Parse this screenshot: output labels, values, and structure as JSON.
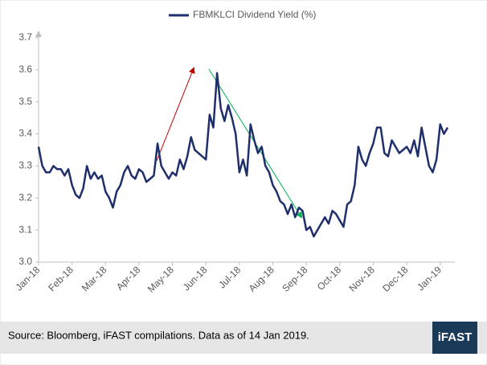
{
  "chart_data": {
    "type": "line",
    "series": [
      {
        "name": "FBMKLCI Dividend Yield (%)",
        "color": "#1f2f6b",
        "values": [
          3.36,
          3.3,
          3.28,
          3.28,
          3.3,
          3.29,
          3.29,
          3.27,
          3.29,
          3.24,
          3.21,
          3.2,
          3.23,
          3.3,
          3.26,
          3.28,
          3.26,
          3.27,
          3.22,
          3.2,
          3.17,
          3.22,
          3.24,
          3.28,
          3.3,
          3.27,
          3.26,
          3.29,
          3.28,
          3.25,
          3.26,
          3.27,
          3.37,
          3.3,
          3.28,
          3.26,
          3.28,
          3.27,
          3.32,
          3.29,
          3.33,
          3.39,
          3.35,
          3.34,
          3.33,
          3.32,
          3.46,
          3.42,
          3.59,
          3.48,
          3.44,
          3.49,
          3.45,
          3.4,
          3.28,
          3.32,
          3.27,
          3.43,
          3.38,
          3.34,
          3.36,
          3.3,
          3.28,
          3.24,
          3.22,
          3.19,
          3.18,
          3.15,
          3.18,
          3.14,
          3.17,
          3.16,
          3.1,
          3.11,
          3.08,
          3.1,
          3.12,
          3.14,
          3.12,
          3.16,
          3.15,
          3.13,
          3.11,
          3.18,
          3.19,
          3.24,
          3.36,
          3.32,
          3.3,
          3.34,
          3.37,
          3.42,
          3.42,
          3.34,
          3.33,
          3.38,
          3.36,
          3.34,
          3.35,
          3.36,
          3.34,
          3.38,
          3.33,
          3.42,
          3.36,
          3.3,
          3.28,
          3.32,
          3.43,
          3.4,
          3.42
        ]
      }
    ],
    "xlim": [
      0,
      110
    ],
    "xticks": [
      {
        "value": 0,
        "label": "Jan-18"
      },
      {
        "value": 9,
        "label": "Feb-18"
      },
      {
        "value": 18,
        "label": "Mar-18"
      },
      {
        "value": 27,
        "label": "Apr-18"
      },
      {
        "value": 36,
        "label": "May-18"
      },
      {
        "value": 45,
        "label": "Jun-18"
      },
      {
        "value": 54,
        "label": "Jul-18"
      },
      {
        "value": 63,
        "label": "Aug-18"
      },
      {
        "value": 72,
        "label": "Sep-18"
      },
      {
        "value": 81,
        "label": "Oct-18"
      },
      {
        "value": 90,
        "label": "Nov-18"
      },
      {
        "value": 99,
        "label": "Dec-18"
      },
      {
        "value": 108,
        "label": "Jan-19"
      }
    ],
    "ylim": [
      3.0,
      3.7
    ],
    "yticks": [
      {
        "value": 3.0,
        "label": "3.0"
      },
      3.1,
      3.2,
      3.3,
      3.4,
      3.5,
      3.6,
      3.7
    ],
    "source": "Source: Bloomberg, iFAST compilations. Data as of 14 Jan 2019.",
    "logo": "iFAST"
  }
}
